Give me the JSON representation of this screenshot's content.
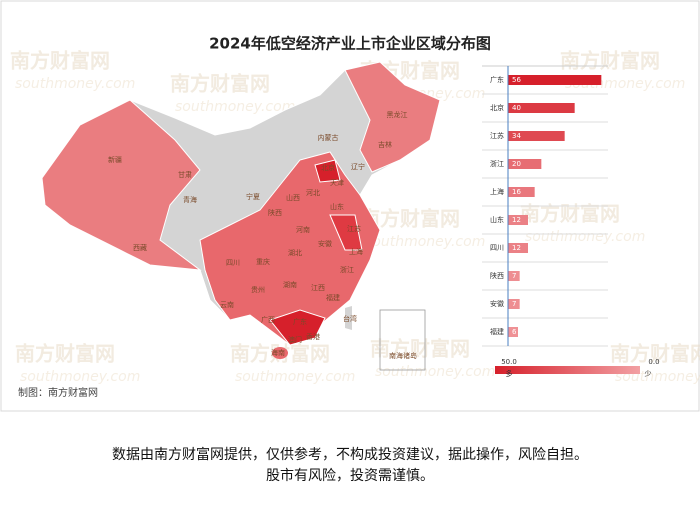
{
  "title": "2024年低空经济产业上市企业区域分布图",
  "watermark": [
    "南方财富网",
    "southmoney.com"
  ],
  "map_labels": [
    "新疆",
    "西藏",
    "青海",
    "甘肃",
    "内蒙古",
    "黑龙江",
    "吉林",
    "辽宁",
    "北京",
    "天津",
    "河北",
    "山西",
    "山东",
    "宁夏",
    "陕西",
    "河南",
    "江苏",
    "安徽",
    "上海",
    "湖北",
    "四川",
    "重庆",
    "浙江",
    "贵州",
    "湖南",
    "江西",
    "福建",
    "云南",
    "广西",
    "广东",
    "台湾",
    "海南",
    "香港",
    "澳门",
    "南海诸岛"
  ],
  "chart_data": {
    "type": "bar",
    "orientation": "horizontal",
    "categories": [
      "广东",
      "北京",
      "江苏",
      "浙江",
      "上海",
      "山东",
      "四川",
      "陕西",
      "安徽",
      "福建"
    ],
    "values": [
      56,
      40,
      34,
      20,
      16,
      12,
      12,
      7,
      7,
      6
    ],
    "xlim": [
      0,
      60
    ],
    "visual_map": {
      "range": [
        {
          "value": 50,
          "label": "50.0"
        },
        {
          "value": 0,
          "label": "0.0"
        }
      ],
      "labels": [
        "多",
        "少"
      ],
      "colors": [
        "#d6202b",
        "#f2a0a3"
      ]
    }
  },
  "source": "制图：南方财富网",
  "disclaimer": [
    "数据由南方财富网提供，仅供参考，不构成投资建议，据此操作，风险自担。",
    "股市有风险，投资需谨慎。"
  ]
}
